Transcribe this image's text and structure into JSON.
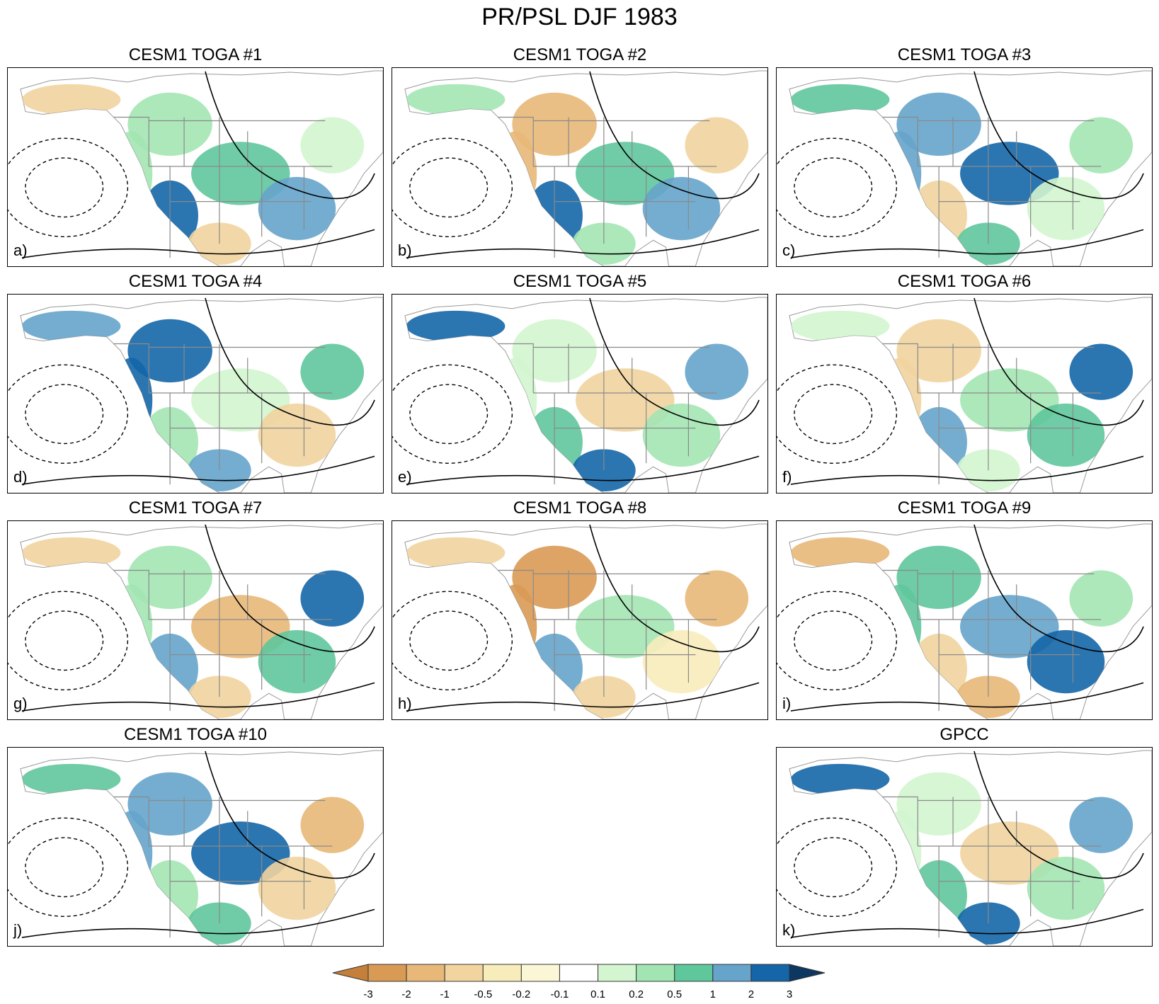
{
  "title": "PR/PSL DJF 1983",
  "panels": [
    {
      "title": "CESM1 TOGA #1",
      "letter": "a)",
      "pattern": "pos"
    },
    {
      "title": "CESM1 TOGA #2",
      "letter": "b)",
      "pattern": "mixed"
    },
    {
      "title": "CESM1 TOGA #3",
      "letter": "c)",
      "pattern": "pos"
    },
    {
      "title": "CESM1 TOGA #4",
      "letter": "d)",
      "pattern": "pos"
    },
    {
      "title": "CESM1 TOGA #5",
      "letter": "e)",
      "pattern": "pos"
    },
    {
      "title": "CESM1 TOGA #6",
      "letter": "f)",
      "pattern": "pos"
    },
    {
      "title": "CESM1 TOGA #7",
      "letter": "g)",
      "pattern": "mixed"
    },
    {
      "title": "CESM1 TOGA #8",
      "letter": "h)",
      "pattern": "neg"
    },
    {
      "title": "CESM1 TOGA #9",
      "letter": "i)",
      "pattern": "mixed"
    },
    {
      "title": "CESM1 TOGA #10",
      "letter": "j)",
      "pattern": "mixed"
    },
    {
      "title": "GPCC",
      "letter": "k)",
      "pattern": "pos"
    }
  ],
  "colorbar": {
    "labels": [
      "-3",
      "-2",
      "-1",
      "-0.5",
      "-0.2",
      "-0.1",
      "0.1",
      "0.2",
      "0.5",
      "1",
      "2",
      "3"
    ],
    "colors": [
      "#c47f3a",
      "#d99a55",
      "#e8b878",
      "#f1d49e",
      "#f8ecbb",
      "#fbf6d6",
      "#ffffff",
      "#d3f5cf",
      "#a3e5b2",
      "#5fc79c",
      "#66a4cb",
      "#1466a8",
      "#0c3760"
    ]
  }
}
